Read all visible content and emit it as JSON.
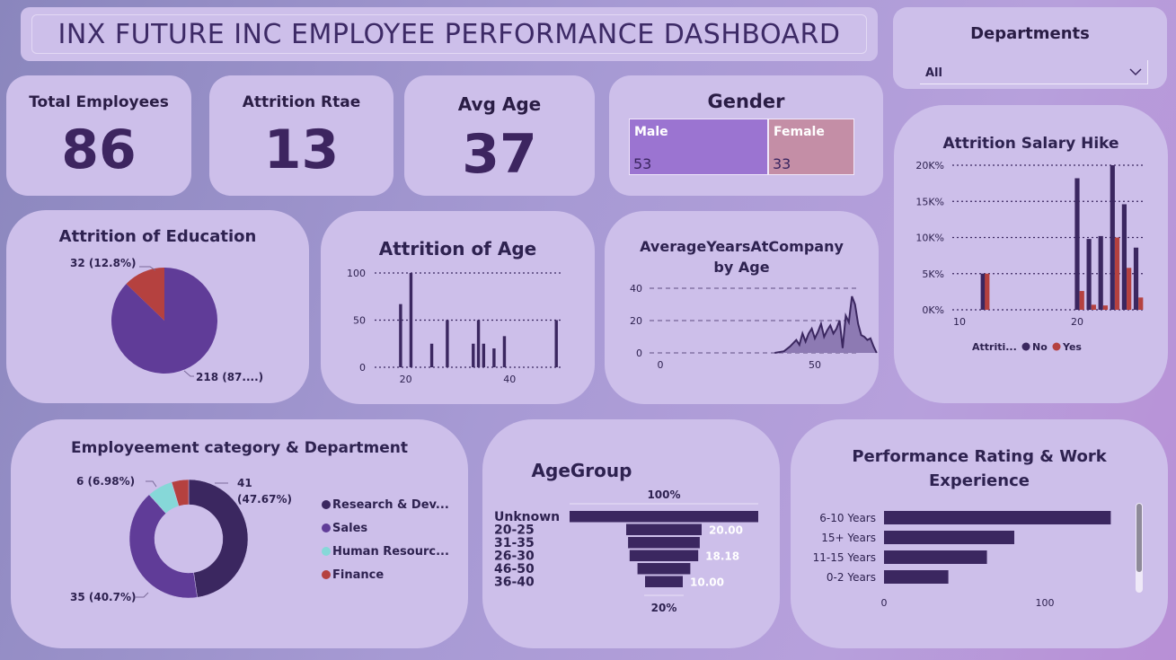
{
  "header": {
    "title": "INX FUTURE INC EMPLOYEE PERFORMANCE DASHBOARD"
  },
  "filter": {
    "label": "Departments",
    "value": "All"
  },
  "kpis": {
    "total_employees": {
      "label": "Total Employees",
      "value": "86"
    },
    "attrition_rate": {
      "label": "Attrition Rtae",
      "value": "13"
    },
    "avg_age": {
      "label": "Avg Age",
      "value": "37"
    }
  },
  "gender": {
    "title": "Gender",
    "male": {
      "label": "Male",
      "value": "53",
      "color": "#9b74d1"
    },
    "female": {
      "label": "Female",
      "value": "33",
      "color": "#c48ea6"
    }
  },
  "colors": {
    "dark": "#3b2760",
    "purple": "#603c98",
    "red": "#b5413f",
    "teal": "#86d8d8"
  },
  "chart_data": [
    {
      "id": "education",
      "type": "pie",
      "title": "Attrition of Education",
      "slices": [
        {
          "value": 218,
          "label": "218 (87....)",
          "color": "#603c98"
        },
        {
          "value": 32,
          "label": "32 (12.8%)",
          "color": "#b5413f"
        }
      ]
    },
    {
      "id": "age",
      "type": "bar",
      "title": "Attrition of Age",
      "x": [
        19,
        21,
        25,
        28,
        33,
        34,
        35,
        37,
        39,
        49
      ],
      "values": [
        67,
        100,
        25,
        50,
        25,
        50,
        25,
        20,
        33,
        50
      ],
      "xticks": [
        "20",
        "40"
      ],
      "yticks": [
        "0",
        "50",
        "100"
      ],
      "ylim": [
        0,
        100
      ]
    },
    {
      "id": "years",
      "type": "area",
      "title": "AverageYearsAtCompany by Age",
      "x": [
        37,
        40,
        42,
        43,
        44,
        45,
        46,
        47,
        48,
        49,
        50,
        51,
        52,
        53,
        54,
        55,
        56,
        57,
        58,
        59,
        60,
        61,
        62,
        63,
        64,
        65,
        66,
        67,
        68,
        69,
        70
      ],
      "values": [
        0,
        1,
        4,
        6,
        8,
        5,
        12,
        7,
        12,
        15,
        9,
        13,
        18,
        10,
        14,
        17,
        12,
        15,
        20,
        3,
        23,
        19,
        35,
        30,
        18,
        11,
        10,
        8,
        9,
        4,
        0
      ],
      "xticks": [
        "0",
        "50"
      ],
      "yticks": [
        "0",
        "20",
        "40"
      ],
      "ylim": [
        0,
        40
      ]
    },
    {
      "id": "salary",
      "type": "bar",
      "title": "Attrition Salary Hike",
      "legend_title": "Attriti...",
      "series": [
        {
          "name": "No",
          "color": "#3b2760",
          "x": [
            12,
            20,
            21,
            22,
            23,
            24,
            25
          ],
          "values": [
            5000,
            18200,
            9800,
            10200,
            20000,
            14600,
            8600
          ]
        },
        {
          "name": "Yes",
          "color": "#b5413f",
          "x": [
            12.35,
            20.4,
            21.4,
            22.4,
            23.4,
            24.4,
            25.4
          ],
          "values": [
            5000,
            2600,
            700,
            600,
            10000,
            5800,
            1700
          ]
        }
      ],
      "xticks": [
        "10",
        "20"
      ],
      "yticks": [
        "0K%",
        "5K%",
        "10K%",
        "15K%",
        "20K%"
      ],
      "ylim": [
        0,
        20000
      ]
    },
    {
      "id": "category",
      "type": "pie",
      "title": "Employeement category & Department",
      "slices": [
        {
          "value": 41,
          "label": "41\n(47.67%)",
          "name": "Research & Dev...",
          "color": "#3b2760"
        },
        {
          "value": 35,
          "label": "35 (40.7%)",
          "name": "Sales",
          "color": "#603c98"
        },
        {
          "value": 6,
          "label": "6 (6.98%)",
          "name": "Human Resourc...",
          "color": "#86d8d8"
        },
        {
          "value": 4,
          "label": "",
          "name": "Finance",
          "color": "#b5413f"
        }
      ]
    },
    {
      "id": "agegroup",
      "type": "bar",
      "title": "AgeGroup",
      "top_label": "100%",
      "bottom_label": "20%",
      "categories": [
        "Unknown",
        "20-25",
        "31-35",
        "26-30",
        "46-50",
        "36-40"
      ],
      "values": [
        100,
        40,
        38,
        36.36,
        28,
        20
      ],
      "data_labels": [
        "",
        "20.00",
        "",
        "18.18",
        "",
        "10.00"
      ]
    },
    {
      "id": "perf",
      "type": "bar",
      "title": "Performance Rating & Work Experience",
      "categories": [
        "6-10 Years",
        "15+ Years",
        "11-15 Years",
        "0-2 Years"
      ],
      "values": [
        141,
        81,
        64,
        40
      ],
      "xticks": [
        "0",
        "100"
      ]
    }
  ]
}
